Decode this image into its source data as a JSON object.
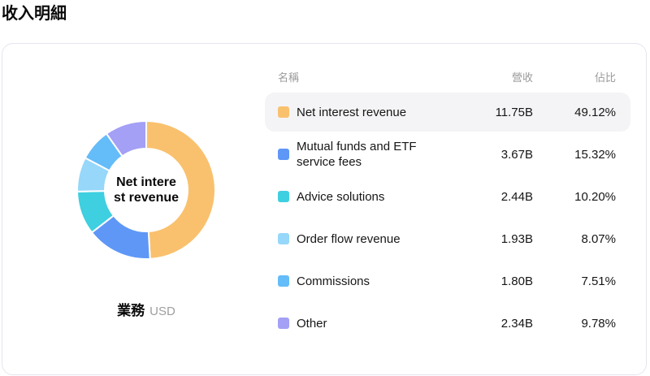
{
  "page": {
    "title": "收入明細"
  },
  "chart": {
    "center_label": "Net intere\nst revenue",
    "footer_label": "業務",
    "footer_unit": "USD"
  },
  "table": {
    "headers": {
      "name": "名稱",
      "revenue": "營收",
      "share": "佔比"
    },
    "rows": [
      {
        "name": "Net interest revenue",
        "revenue": "11.75B",
        "share": "49.12%",
        "color": "#F9C16E"
      },
      {
        "name": "Mutual funds and ETF service fees",
        "revenue": "3.67B",
        "share": "15.32%",
        "color": "#5E97F6"
      },
      {
        "name": "Advice solutions",
        "revenue": "2.44B",
        "share": "10.20%",
        "color": "#3ECFE0"
      },
      {
        "name": "Order flow revenue",
        "revenue": "1.93B",
        "share": "8.07%",
        "color": "#96D7FA"
      },
      {
        "name": "Commissions",
        "revenue": "1.80B",
        "share": "7.51%",
        "color": "#64BCF8"
      },
      {
        "name": "Other",
        "revenue": "2.34B",
        "share": "9.78%",
        "color": "#A3A0F5"
      }
    ]
  },
  "chart_data": {
    "type": "pie",
    "title": "收入明細",
    "subtitle": "業務 USD",
    "center_label": "Net interest revenue",
    "categories": [
      "Net interest revenue",
      "Mutual funds and ETF service fees",
      "Advice solutions",
      "Order flow revenue",
      "Commissions",
      "Other"
    ],
    "values": [
      11.75,
      3.67,
      2.44,
      1.93,
      1.8,
      2.34
    ],
    "unit": "B USD",
    "percentages": [
      49.12,
      15.32,
      10.2,
      8.07,
      7.51,
      9.78
    ],
    "colors": [
      "#F9C16E",
      "#5E97F6",
      "#3ECFE0",
      "#96D7FA",
      "#64BCF8",
      "#A3A0F5"
    ],
    "donut": true,
    "inner_radius_ratio": 0.6,
    "start_angle_deg": 0,
    "direction": "clockwise",
    "legend_position": "right-table"
  }
}
